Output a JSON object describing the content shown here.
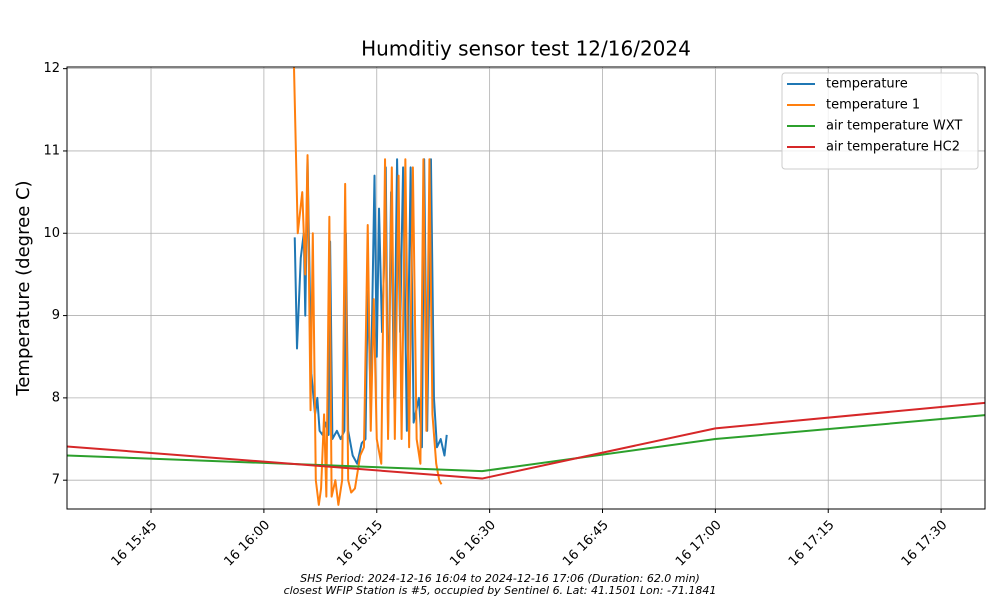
{
  "chart_data": {
    "type": "line",
    "title": "Humditiy sensor test 12/16/2024",
    "y_label": "Temperature (degree C)",
    "annotations": [
      "SHS Period: 2024-12-16 16:04 to 2024-12-16 17:06 (Duration: 62.0 min)",
      "closest WFIP Station is #5, occupied by Sentinel 6. Lat: 41.1501 Lon: -71.1841"
    ],
    "xlim": [
      "16 15:33:50",
      "16 17:35:50"
    ],
    "xticks": [
      "16 15:45",
      "16 16:00",
      "16 16:15",
      "16 16:30",
      "16 16:45",
      "16 17:00",
      "16 17:15",
      "16 17:30"
    ],
    "ylim": [
      6.65,
      12.02
    ],
    "yticks": [
      7,
      8,
      9,
      10,
      11,
      12
    ],
    "grid": true,
    "legend": "upper right",
    "series": [
      {
        "name": "temperature",
        "color": "#1f77b4",
        "x": [
          "16 16:04:06",
          "16 16:04:24",
          "16 16:04:54",
          "16 16:05:18",
          "16 16:05:30",
          "16 16:05:48",
          "16 16:06:18",
          "16 16:06:48",
          "16 16:07:06",
          "16 16:07:24",
          "16 16:07:48",
          "16 16:08:12",
          "16 16:08:36",
          "16 16:08:48",
          "16 16:09:06",
          "16 16:09:42",
          "16 16:10:12",
          "16 16:10:42",
          "16 16:10:54",
          "16 16:11:12",
          "16 16:11:48",
          "16 16:12:24",
          "16 16:13:00",
          "16 16:13:30",
          "16 16:13:48",
          "16 16:14:12",
          "16 16:14:42",
          "16 16:15:00",
          "16 16:15:18",
          "16 16:15:42",
          "16 16:16:00",
          "16 16:16:12",
          "16 16:16:30",
          "16 16:16:54",
          "16 16:17:18",
          "16 16:17:42",
          "16 16:18:06",
          "16 16:18:30",
          "16 16:19:00",
          "16 16:19:30",
          "16 16:19:54",
          "16 16:20:36",
          "16 16:21:00",
          "16 16:21:18",
          "16 16:21:42",
          "16 16:22:12",
          "16 16:22:36",
          "16 16:23:00",
          "16 16:23:30",
          "16 16:24:00",
          "16 16:24:18"
        ],
        "values": [
          9.95,
          8.6,
          9.7,
          10.0,
          9.0,
          10.9,
          8.3,
          7.8,
          8.0,
          7.6,
          7.55,
          7.7,
          7.55,
          9.9,
          7.5,
          7.6,
          7.5,
          7.6,
          10.0,
          7.6,
          7.3,
          7.2,
          7.45,
          7.5,
          9.3,
          8.0,
          10.7,
          8.5,
          10.3,
          8.8,
          9.7,
          10.8,
          7.6,
          10.5,
          8.0,
          10.9,
          8.8,
          10.8,
          7.6,
          10.8,
          7.7,
          8.0,
          7.4,
          10.9,
          7.6,
          10.9,
          8.0,
          7.4,
          7.5,
          7.3,
          7.55
        ]
      },
      {
        "name": "temperature 1",
        "color": "#ff7f0e",
        "x": [
          "16 16:04:00",
          "16 16:04:30",
          "16 16:05:06",
          "16 16:05:30",
          "16 16:05:48",
          "16 16:06:12",
          "16 16:06:30",
          "16 16:06:54",
          "16 16:07:18",
          "16 16:07:36",
          "16 16:08:00",
          "16 16:08:18",
          "16 16:08:42",
          "16 16:09:00",
          "16 16:09:30",
          "16 16:09:54",
          "16 16:10:24",
          "16 16:10:48",
          "16 16:11:12",
          "16 16:11:36",
          "16 16:12:06",
          "16 16:12:48",
          "16 16:13:18",
          "16 16:13:48",
          "16 16:14:12",
          "16 16:14:36",
          "16 16:15:00",
          "16 16:15:36",
          "16 16:16:06",
          "16 16:16:30",
          "16 16:17:00",
          "16 16:17:24",
          "16 16:17:54",
          "16 16:18:18",
          "16 16:18:48",
          "16 16:19:18",
          "16 16:19:48",
          "16 16:20:18",
          "16 16:20:48",
          "16 16:21:12",
          "16 16:21:36",
          "16 16:22:00",
          "16 16:22:24",
          "16 16:22:54",
          "16 16:23:18",
          "16 16:23:36"
        ],
        "values": [
          12.02,
          10.0,
          10.5,
          9.5,
          10.95,
          7.85,
          10.0,
          7.0,
          6.7,
          6.9,
          7.8,
          6.8,
          10.2,
          6.8,
          7.0,
          6.7,
          7.0,
          10.6,
          7.0,
          6.85,
          6.9,
          7.3,
          7.4,
          10.1,
          7.6,
          9.2,
          7.5,
          7.2,
          10.9,
          7.5,
          10.8,
          7.5,
          10.7,
          7.5,
          10.9,
          7.4,
          10.8,
          7.5,
          7.2,
          10.9,
          7.6,
          10.9,
          7.8,
          7.2,
          7.0,
          6.95
        ]
      },
      {
        "name": "air temperature WXT",
        "color": "#2ca02c",
        "x": [
          "16 15:33:50",
          "16 16:29:00",
          "16 17:00:00",
          "16 17:35:50"
        ],
        "values": [
          7.3,
          7.11,
          7.5,
          7.79
        ]
      },
      {
        "name": "air temperature HC2",
        "color": "#d62728",
        "x": [
          "16 15:33:50",
          "16 16:29:00",
          "16 17:00:00",
          "16 17:35:50"
        ],
        "values": [
          7.41,
          7.02,
          7.63,
          7.94
        ]
      }
    ]
  }
}
